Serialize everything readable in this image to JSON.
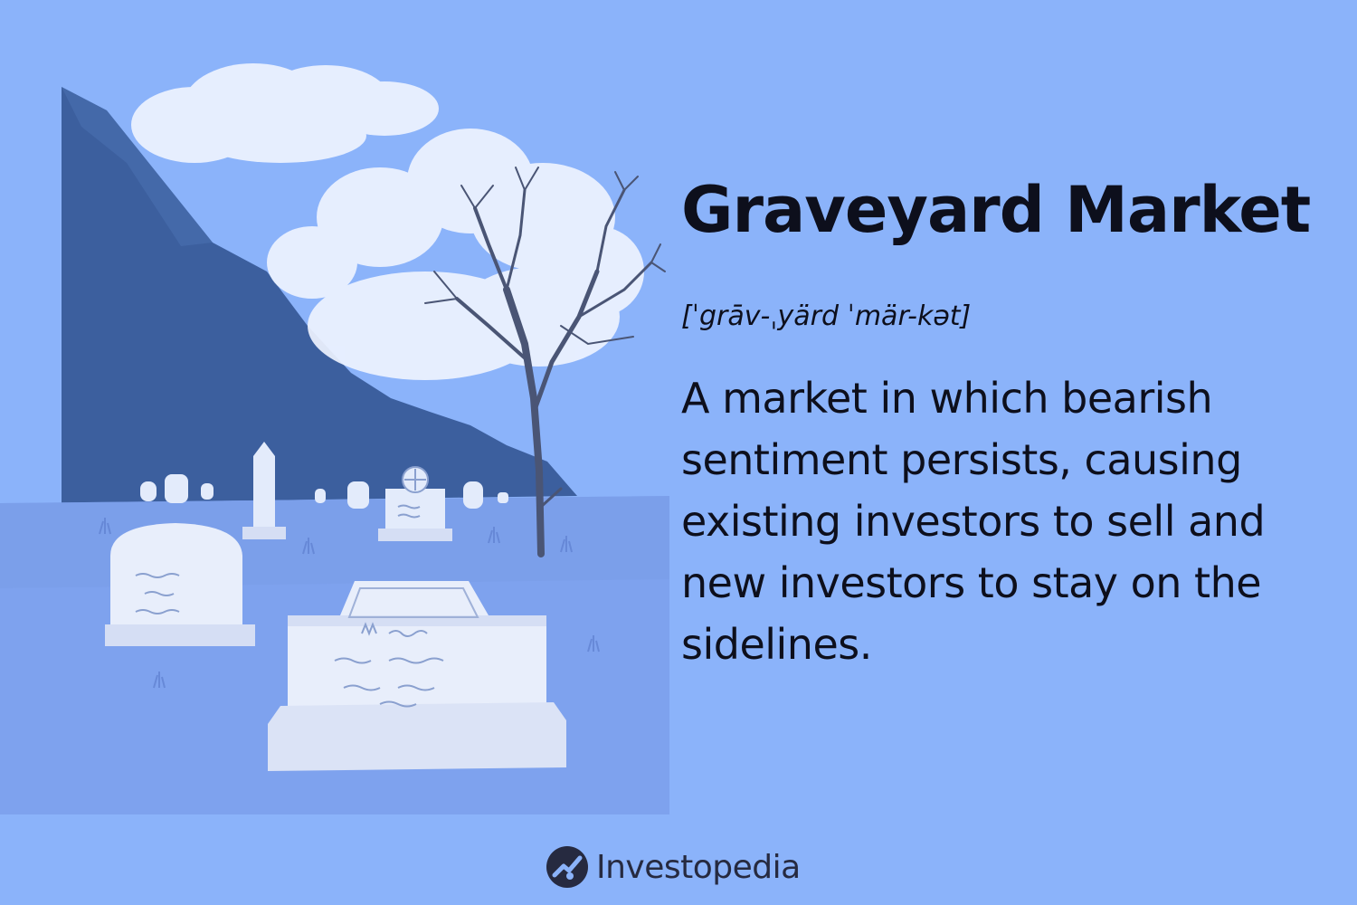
{
  "heading": {
    "title": "Graveyard Market",
    "pronunciation": "[ˈgrāv-ˌyärd ˈmär-kət]",
    "definition": "A market in which bearish sentiment persists, causing existing investors to sell and new investors to stay on the sidelines."
  },
  "illustration": {
    "subject": "graveyard-scene",
    "icons": [
      "mountain-icon",
      "cloud-icon",
      "bare-tree-icon",
      "gravestone-icon"
    ],
    "colors": {
      "background": "#8bb3fa",
      "mountain": "#3c5f9e",
      "mountain_light": "#6d95e0",
      "cloud": "#eef3ff",
      "ground": "#7ea2ee",
      "stone": "#e3ebfb",
      "tree": "#4a5575"
    }
  },
  "brand": {
    "name": "Investopedia",
    "icon": "investopedia-logo-icon",
    "color": "#262a40"
  }
}
